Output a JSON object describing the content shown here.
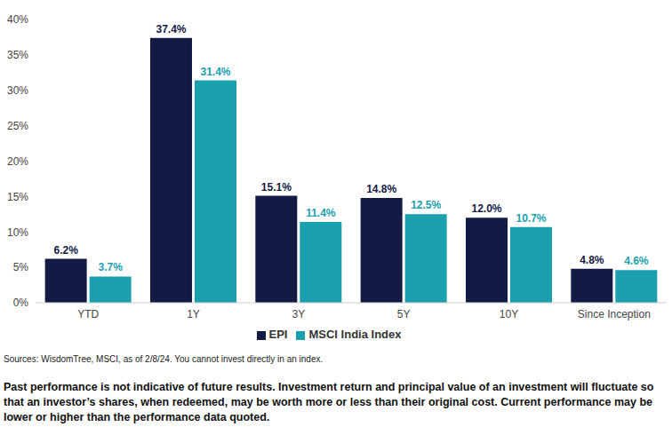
{
  "chart_data": {
    "type": "bar",
    "categories": [
      "YTD",
      "1Y",
      "3Y",
      "5Y",
      "10Y",
      "Since Inception"
    ],
    "series": [
      {
        "name": "EPI",
        "color": "#141a46",
        "values": [
          6.2,
          37.4,
          15.1,
          14.8,
          12.0,
          4.8
        ],
        "value_labels": [
          "6.2%",
          "37.4%",
          "15.1%",
          "14.8%",
          "12.0%",
          "4.8%"
        ]
      },
      {
        "name": "MSCI India Index",
        "color": "#1a9fae",
        "values": [
          3.7,
          31.4,
          11.4,
          12.5,
          10.7,
          4.6
        ],
        "value_labels": [
          "3.7%",
          "31.4%",
          "11.4%",
          "12.5%",
          "10.7%",
          "4.6%"
        ]
      }
    ],
    "ylim": [
      0,
      40
    ],
    "yticks": [
      {
        "value": 0,
        "label": "0%"
      },
      {
        "value": 5,
        "label": "5%"
      },
      {
        "value": 10,
        "label": "10%"
      },
      {
        "value": 15,
        "label": "15%"
      },
      {
        "value": 20,
        "label": "20%"
      },
      {
        "value": 25,
        "label": "25%"
      },
      {
        "value": 30,
        "label": "30%"
      },
      {
        "value": 35,
        "label": "35%"
      },
      {
        "value": 40,
        "label": "40%"
      }
    ],
    "grid": false,
    "data_labels": true,
    "legend": "bottom",
    "annotations": [
      "Sources: WisdomTree, MSCI, as of 2/8/24. You cannot invest directly in an index.",
      "Past performance is not indicative of future results. Investment return and principal value of an investment will fluctuate so that an investor’s shares, when redeemed, may be worth more or less than their original cost. Current performance may be lower or higher than the performance data quoted."
    ]
  }
}
